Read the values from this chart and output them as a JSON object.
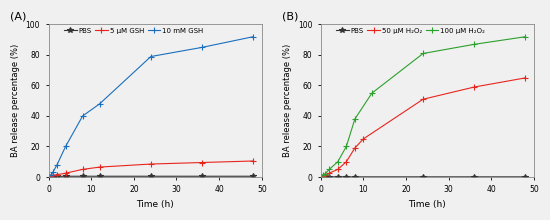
{
  "panel_A": {
    "label": "(A)",
    "xlabel": "Time (h)",
    "ylabel": "BA release percentage (%)",
    "ylim": [
      0,
      100
    ],
    "xlim": [
      0,
      50
    ],
    "xticks": [
      0,
      10,
      20,
      30,
      40,
      50
    ],
    "yticks": [
      0,
      20,
      40,
      60,
      80,
      100
    ],
    "series": [
      {
        "name": "PBS",
        "color": "#333333",
        "marker": "*",
        "markersize": 4,
        "x": [
          0,
          0.5,
          1,
          2,
          4,
          8,
          12,
          24,
          36,
          48
        ],
        "y": [
          0,
          0.2,
          0.3,
          0.4,
          0.5,
          0.5,
          0.5,
          0.5,
          0.5,
          0.5
        ]
      },
      {
        "name": "5 μM GSH",
        "color": "#e8251d",
        "marker": "+",
        "markersize": 4,
        "x": [
          0,
          0.5,
          1,
          2,
          4,
          8,
          12,
          24,
          36,
          48
        ],
        "y": [
          0,
          0.5,
          1.0,
          1.5,
          2.5,
          5.0,
          6.5,
          8.5,
          9.5,
          10.5
        ]
      },
      {
        "name": "10 mM GSH",
        "color": "#1a6fbd",
        "marker": "+",
        "markersize": 4,
        "x": [
          0,
          0.5,
          1,
          2,
          4,
          8,
          12,
          24,
          36,
          48
        ],
        "y": [
          0,
          1.0,
          3.0,
          8.0,
          20.0,
          40.0,
          48.0,
          79.0,
          85.0,
          92.0
        ]
      }
    ]
  },
  "panel_B": {
    "label": "(B)",
    "xlabel": "Time (h)",
    "ylabel": "BA release percentage (%)",
    "ylim": [
      0,
      100
    ],
    "xlim": [
      0,
      50
    ],
    "xticks": [
      0,
      10,
      20,
      30,
      40,
      50
    ],
    "yticks": [
      0,
      20,
      40,
      60,
      80,
      100
    ],
    "series": [
      {
        "name": "PBS",
        "color": "#333333",
        "marker": "*",
        "markersize": 4,
        "x": [
          0,
          0.5,
          1,
          2,
          4,
          6,
          8,
          24,
          36,
          48
        ],
        "y": [
          0,
          0.1,
          0.1,
          0.1,
          0.1,
          0.1,
          0.1,
          0.1,
          0.1,
          0.1
        ]
      },
      {
        "name": "50 μM H₂O₂",
        "color": "#e8251d",
        "marker": "+",
        "markersize": 4,
        "x": [
          0,
          0.5,
          1,
          2,
          4,
          6,
          8,
          10,
          24,
          36,
          48
        ],
        "y": [
          0,
          0.5,
          1.0,
          2.5,
          5.0,
          10.0,
          19.0,
          25.0,
          51.0,
          59.0,
          65.0
        ]
      },
      {
        "name": "100 μM H₂O₂",
        "color": "#2ca02c",
        "marker": "+",
        "markersize": 4,
        "x": [
          0,
          0.5,
          1,
          2,
          4,
          6,
          8,
          12,
          24,
          36,
          48
        ],
        "y": [
          0,
          1.0,
          2.0,
          5.0,
          10.0,
          20.0,
          38.0,
          55.0,
          81.0,
          87.0,
          92.0
        ]
      }
    ]
  },
  "fig_width": 5.5,
  "fig_height": 2.2,
  "dpi": 100,
  "bg_color": "#f0f0f0"
}
